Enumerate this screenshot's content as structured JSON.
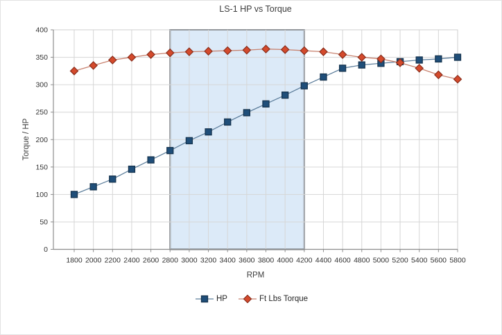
{
  "chart_data": {
    "type": "line",
    "title": "LS-1 HP vs Torque",
    "xlabel": "RPM",
    "ylabel": "Torque / HP",
    "x": [
      1800,
      2000,
      2200,
      2400,
      2600,
      2800,
      3000,
      3200,
      3400,
      3600,
      3800,
      4000,
      4200,
      4400,
      4600,
      4800,
      5000,
      5200,
      5400,
      5600,
      5800
    ],
    "series": [
      {
        "name": "HP",
        "marker": "square",
        "values": [
          100,
          114,
          128,
          146,
          163,
          180,
          198,
          214,
          232,
          249,
          265,
          281,
          298,
          314,
          330,
          336,
          339,
          342,
          345,
          347,
          350
        ],
        "line_color": "#5E7F9C",
        "marker_fill": "#1F4E79",
        "marker_border": "#16344F"
      },
      {
        "name": "Ft Lbs Torque",
        "marker": "diamond",
        "values": [
          325,
          335,
          345,
          350,
          355,
          358,
          360,
          361,
          362,
          363,
          365,
          364,
          362,
          360,
          355,
          350,
          347,
          340,
          330,
          318,
          310
        ],
        "line_color": "#C8826F",
        "marker_fill": "#D44A2C",
        "marker_border": "#8A2E1C"
      }
    ],
    "ylim": [
      0,
      400
    ],
    "ytick_step": 50,
    "grid": true,
    "legend_position": "bottom",
    "highlight_region": {
      "x_start": 2800,
      "x_end": 4200,
      "fill": "#DCEAF8",
      "border": "#586069"
    },
    "colors": {
      "gridline": "#D6D6D6",
      "axis_line": "#8C8C8C",
      "plot_border": "#CFCFCF",
      "tick_text": "#333333"
    }
  }
}
